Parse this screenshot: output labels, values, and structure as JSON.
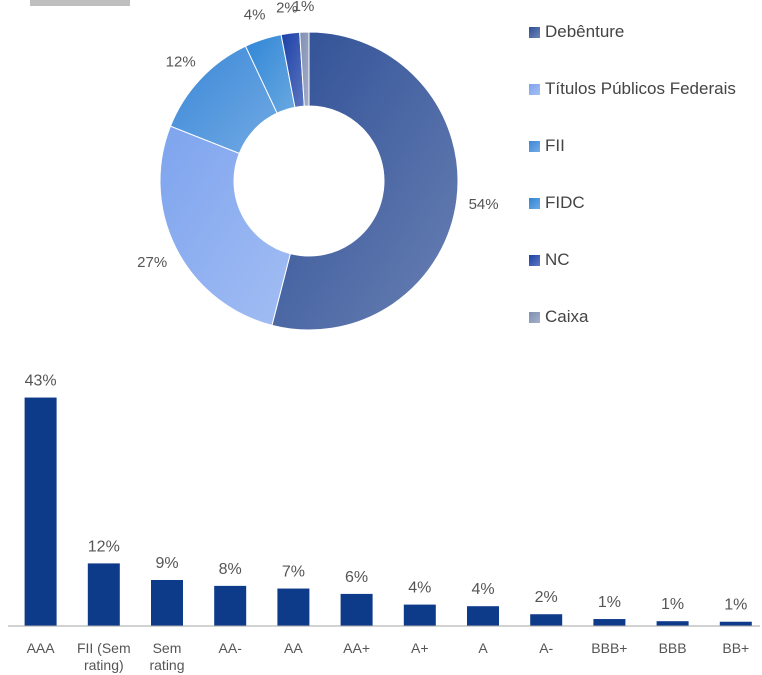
{
  "chart_data": [
    {
      "type": "pie",
      "donut": true,
      "categories": [
        "Debênture",
        "Títulos Públicos Federais",
        "FII",
        "FIDC",
        "NC",
        "Caixa"
      ],
      "values": [
        54,
        27,
        12,
        4,
        2,
        1
      ],
      "labels": [
        "54%",
        "27%",
        "12%",
        "4%",
        "2%",
        "1%"
      ],
      "colors": [
        "#2e4f96",
        "#7ea4ee",
        "#3a88d8",
        "#2f86d6",
        "#1b3fa6",
        "#7f8fb2"
      ],
      "legend_position": "right"
    },
    {
      "type": "bar",
      "categories": [
        [
          "AAA"
        ],
        [
          "FII (Sem",
          "rating)"
        ],
        [
          "Sem",
          "rating"
        ],
        [
          "AA-"
        ],
        [
          "AA"
        ],
        [
          "AA+"
        ],
        [
          "A+"
        ],
        [
          "A"
        ],
        [
          "A-"
        ],
        [
          "BBB+"
        ],
        [
          "BBB"
        ],
        [
          "BB+"
        ]
      ],
      "values": [
        43,
        12,
        9,
        8,
        7,
        6,
        4,
        4,
        2,
        1,
        1,
        1
      ],
      "heights": [
        42.7,
        11.7,
        8.6,
        7.5,
        7.0,
        6.0,
        4.0,
        3.7,
        2.2,
        1.3,
        0.9,
        0.8
      ],
      "labels": [
        "43%",
        "12%",
        "9%",
        "8%",
        "7%",
        "6%",
        "4%",
        "4%",
        "2%",
        "1%",
        "1%",
        "1%"
      ],
      "color": "#0e3a8a",
      "grid": false
    }
  ]
}
